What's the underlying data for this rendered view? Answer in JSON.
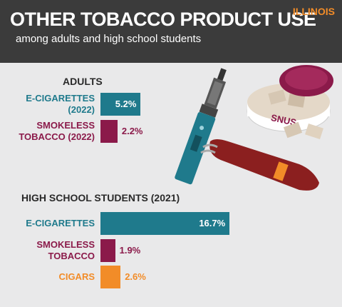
{
  "header": {
    "title": "OTHER TOBACCO PRODUCT USE",
    "subtitle": "among adults and high school students",
    "badge": "ILLINOIS"
  },
  "chart_data": [
    {
      "type": "bar",
      "title": "ADULTS",
      "categories": [
        "E-CIGARETTES (2022)",
        "SMOKELESS TOBACCO (2022)"
      ],
      "values": [
        5.2,
        2.2
      ],
      "value_labels": [
        "5.2%",
        "2.2%"
      ],
      "colors": [
        "#1f7a8c",
        "#8b1a4a"
      ]
    },
    {
      "type": "bar",
      "title": "HIGH SCHOOL STUDENTS (2021)",
      "categories": [
        "E-CIGARETTES",
        "SMOKELESS TOBACCO",
        "CIGARS"
      ],
      "values": [
        16.7,
        1.9,
        2.6
      ],
      "value_labels": [
        "16.7%",
        "1.9%",
        "2.6%"
      ],
      "colors": [
        "#1f7a8c",
        "#8b1a4a",
        "#f28c28"
      ]
    }
  ]
}
